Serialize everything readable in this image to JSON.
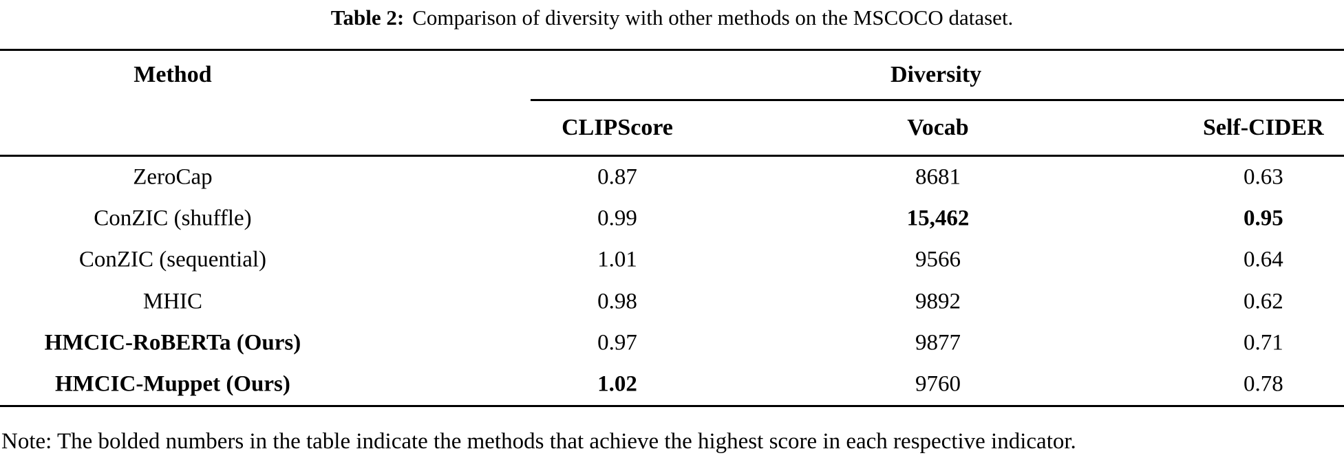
{
  "caption": {
    "label": "Table 2:",
    "text": "Comparison of diversity with other methods on the MSCOCO dataset."
  },
  "table": {
    "col1_header": "Method",
    "group_header": "Diversity",
    "sub_headers": [
      "CLIPScore",
      "Vocab",
      "Self-CIDER"
    ],
    "rows": [
      {
        "method": "ZeroCap",
        "clipscore": "0.87",
        "vocab": "8681",
        "self_cider": "0.63"
      },
      {
        "method": "ConZIC (shuffle)",
        "clipscore": "0.99",
        "vocab": "15,462",
        "self_cider": "0.95"
      },
      {
        "method": "ConZIC (sequential)",
        "clipscore": "1.01",
        "vocab": "9566",
        "self_cider": "0.64"
      },
      {
        "method": "MHIC",
        "clipscore": "0.98",
        "vocab": "9892",
        "self_cider": "0.62"
      },
      {
        "method": "HMCIC-RoBERTa (Ours)",
        "clipscore": "0.97",
        "vocab": "9877",
        "self_cider": "0.71"
      },
      {
        "method": "HMCIC-Muppet (Ours)",
        "clipscore": "1.02",
        "vocab": "9760",
        "self_cider": "0.78"
      }
    ]
  },
  "note": "Note: The bolded numbers in the table indicate the methods that achieve the highest score in each respective indicator.",
  "colors": {
    "text": "#000000",
    "background": "#ffffff",
    "rule": "#000000"
  }
}
